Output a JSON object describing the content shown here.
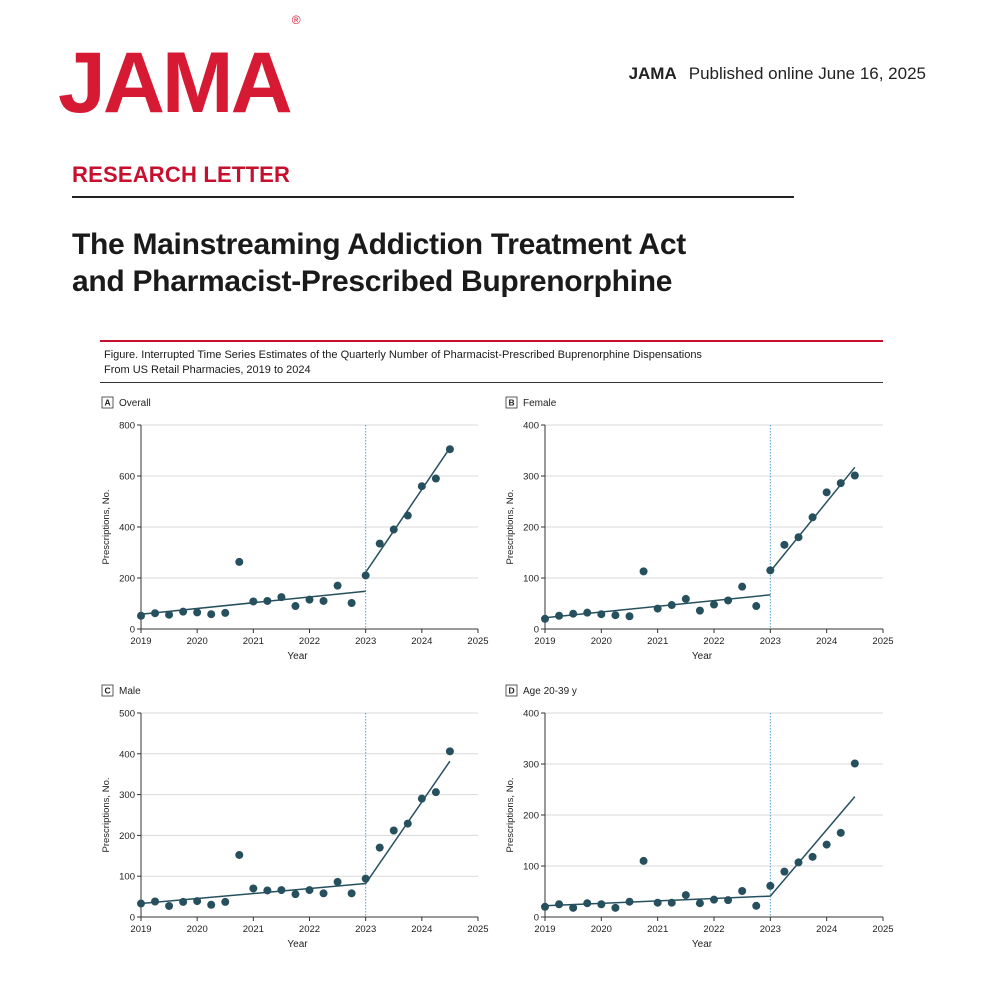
{
  "header": {
    "logo": "JAMA",
    "logo_mark": "®",
    "journal": "JAMA",
    "published": "Published online June 16, 2025"
  },
  "article": {
    "section": "RESEARCH LETTER",
    "title_line1": "The Mainstreaming Addiction Treatment Act",
    "title_line2": "and Pharmacist-Prescribed Buprenorphine"
  },
  "figure": {
    "caption_line1": "Figure. Interrupted Time Series Estimates of the Quarterly Number of Pharmacist-Prescribed Buprenorphine Dispensations",
    "caption_line2": "From US Retail Pharmacies, 2019 to 2024"
  },
  "colors": {
    "accent": "#c8102e",
    "points": "#27505e",
    "trend": "#27505e",
    "intervention": "#4da3d4",
    "grid": "#d9d9d9"
  },
  "chart_data": [
    {
      "type": "scatter",
      "panel_letter": "A",
      "title": "Overall",
      "xlabel": "Year",
      "ylabel": "Prescriptions, No.",
      "xlim": [
        2019,
        2025
      ],
      "ylim": [
        0,
        800
      ],
      "xticks": [
        2019,
        2020,
        2021,
        2022,
        2023,
        2024,
        2025
      ],
      "yticks": [
        0,
        200,
        400,
        600,
        800
      ],
      "intervention_x": 2023,
      "x": [
        2019,
        2019.25,
        2019.5,
        2019.75,
        2020,
        2020.25,
        2020.5,
        2020.75,
        2021,
        2021.25,
        2021.5,
        2021.75,
        2022,
        2022.25,
        2022.5,
        2022.75,
        2023,
        2023.25,
        2023.5,
        2023.75,
        2024,
        2024.25,
        2024.5
      ],
      "y": [
        52,
        62,
        56,
        68,
        65,
        58,
        63,
        263,
        108,
        110,
        125,
        90,
        115,
        110,
        170,
        102,
        210,
        335,
        390,
        445,
        560,
        590,
        705
      ],
      "trend_pre": [
        [
          2019,
          58
        ],
        [
          2023,
          148
        ]
      ],
      "trend_post": [
        [
          2023,
          222
        ],
        [
          2024.5,
          710
        ]
      ]
    },
    {
      "type": "scatter",
      "panel_letter": "B",
      "title": "Female",
      "xlabel": "Year",
      "ylabel": "Prescriptions, No.",
      "xlim": [
        2019,
        2025
      ],
      "ylim": [
        0,
        400
      ],
      "xticks": [
        2019,
        2020,
        2021,
        2022,
        2023,
        2024,
        2025
      ],
      "yticks": [
        0,
        100,
        200,
        300,
        400
      ],
      "intervention_x": 2023,
      "x": [
        2019,
        2019.25,
        2019.5,
        2019.75,
        2020,
        2020.25,
        2020.5,
        2020.75,
        2021,
        2021.25,
        2021.5,
        2021.75,
        2022,
        2022.25,
        2022.5,
        2022.75,
        2023,
        2023.25,
        2023.5,
        2023.75,
        2024,
        2024.25,
        2024.5
      ],
      "y": [
        20,
        26,
        30,
        32,
        29,
        27,
        25,
        113,
        40,
        47,
        59,
        36,
        48,
        56,
        83,
        45,
        115,
        165,
        180,
        219,
        268,
        286,
        301
      ],
      "trend_pre": [
        [
          2019,
          22
        ],
        [
          2023,
          67
        ]
      ],
      "trend_post": [
        [
          2023,
          113
        ],
        [
          2024.5,
          317
        ]
      ]
    },
    {
      "type": "scatter",
      "panel_letter": "C",
      "title": "Male",
      "xlabel": "Year",
      "ylabel": "Prescriptions, No.",
      "xlim": [
        2019,
        2025
      ],
      "ylim": [
        0,
        500
      ],
      "xticks": [
        2019,
        2020,
        2021,
        2022,
        2023,
        2024,
        2025
      ],
      "yticks": [
        0,
        100,
        200,
        300,
        400,
        500
      ],
      "intervention_x": 2023,
      "x": [
        2019,
        2019.25,
        2019.5,
        2019.75,
        2020,
        2020.25,
        2020.5,
        2020.75,
        2021,
        2021.25,
        2021.5,
        2021.75,
        2022,
        2022.25,
        2022.5,
        2022.75,
        2023,
        2023.25,
        2023.5,
        2023.75,
        2024,
        2024.25,
        2024.5
      ],
      "y": [
        33,
        38,
        27,
        37,
        39,
        30,
        37,
        152,
        70,
        65,
        66,
        56,
        66,
        58,
        86,
        58,
        94,
        170,
        212,
        229,
        290,
        306,
        406
      ],
      "trend_pre": [
        [
          2019,
          33
        ],
        [
          2023,
          82
        ]
      ],
      "trend_post": [
        [
          2023,
          82
        ],
        [
          2024.5,
          382
        ]
      ]
    },
    {
      "type": "scatter",
      "panel_letter": "D",
      "title": "Age 20-39 y",
      "xlabel": "Year",
      "ylabel": "Prescriptions, No.",
      "xlim": [
        2019,
        2025
      ],
      "ylim": [
        0,
        400
      ],
      "xticks": [
        2019,
        2020,
        2021,
        2022,
        2023,
        2024,
        2025
      ],
      "yticks": [
        0,
        100,
        200,
        300,
        400
      ],
      "intervention_x": 2023,
      "x": [
        2019,
        2019.25,
        2019.5,
        2019.75,
        2020,
        2020.25,
        2020.5,
        2020.75,
        2021,
        2021.25,
        2021.5,
        2021.75,
        2022,
        2022.25,
        2022.5,
        2022.75,
        2023,
        2023.25,
        2023.5,
        2023.75,
        2024,
        2024.25,
        2024.5
      ],
      "y": [
        20,
        25,
        18,
        27,
        25,
        18,
        30,
        110,
        28,
        28,
        43,
        27,
        34,
        33,
        51,
        22,
        61,
        89,
        107,
        118,
        142,
        165,
        301
      ],
      "trend_pre": [
        [
          2019,
          22
        ],
        [
          2023,
          41
        ]
      ],
      "trend_post": [
        [
          2023,
          41
        ],
        [
          2024.5,
          236
        ]
      ]
    }
  ]
}
